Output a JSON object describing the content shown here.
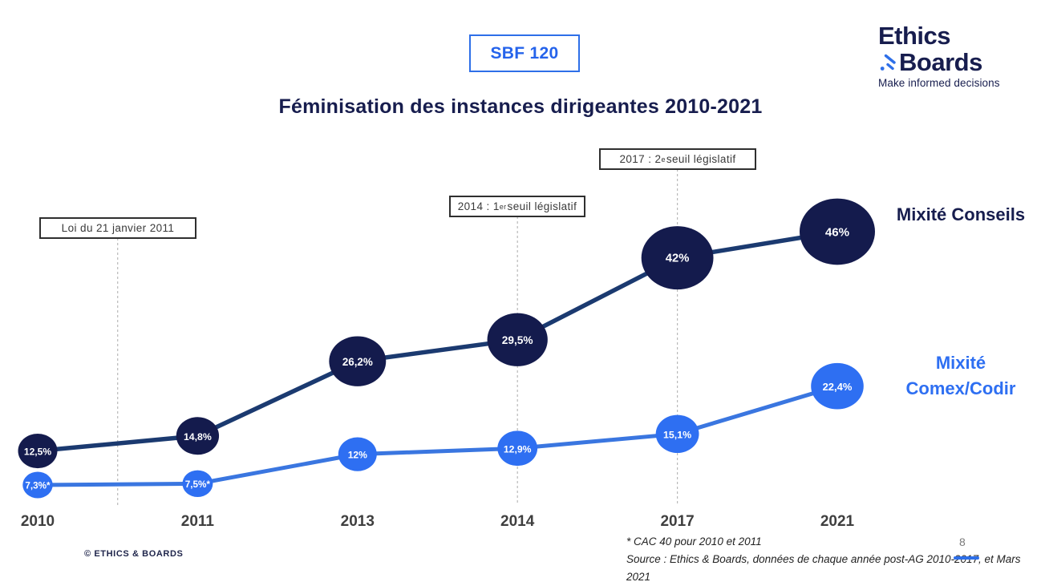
{
  "colors": {
    "navy": "#171d4e",
    "dark_bubble": "#141b4d",
    "dark_line": "#1b3a70",
    "blue_bubble": "#2e6ff2",
    "blue_line": "#3a76e0",
    "accent_blue": "#2e6fe8",
    "axis_label_grey": "#3f3f3f",
    "page_number_grey": "#7a7a7a"
  },
  "header": {
    "index_badge": "SBF 120",
    "title": "Féminisation des instances dirigeantes 2010-2021",
    "logo": {
      "word1": "Ethics",
      "word2": "Boards",
      "ampersand": "&",
      "tagline": "Make informed decisions"
    }
  },
  "annotation_boxes": {
    "loi": {
      "pre": "Loi du 21 janvier 2011",
      "sup": "",
      "post": ""
    },
    "seuil_2014": {
      "pre": "2014 : 1",
      "sup": "er",
      "post": " seuil législatif"
    },
    "seuil_2017": {
      "pre": "2017 : 2",
      "sup": "e",
      "post": " seuil législatif"
    }
  },
  "chart_data": {
    "type": "line",
    "title": "Féminisation des instances dirigeantes 2010-2021",
    "subtitle": "SBF 120",
    "categories": [
      "2010",
      "2011",
      "2013",
      "2014",
      "2017",
      "2021"
    ],
    "series": [
      {
        "name": "Mixité Conseils",
        "color": "#141b4d",
        "line_color": "#1b3a70",
        "values": [
          12.5,
          14.8,
          26.2,
          29.5,
          42,
          46
        ],
        "point_labels": [
          "12,5%",
          "14,8%",
          "26,2%",
          "29,5%",
          "42%",
          "46%"
        ]
      },
      {
        "name": "Mixité Comex/Codir",
        "color": "#2e6ff2",
        "line_color": "#3a76e0",
        "values": [
          7.3,
          7.5,
          12,
          12.9,
          15.1,
          22.4
        ],
        "point_labels": [
          "7,3%*",
          "7,5%*",
          "12%",
          "12,9%",
          "15,1%",
          "22,4%"
        ]
      }
    ],
    "annotations": [
      "Loi du 21 janvier 2011",
      "2014 : 1er seuil législatif",
      "2017 : 2e seuil législatif"
    ],
    "ylim": [
      0,
      50
    ],
    "grid": false,
    "legend_position": "right",
    "value_suffix": "%",
    "point_style": "bubble-sized-by-value"
  },
  "footer": {
    "copyright": "© ETHICS & BOARDS",
    "note": "* CAC 40 pour 2010 et 2011",
    "source": "Source : Ethics & Boards, données de chaque année post-AG 2010-2017, et Mars 2021",
    "page_number": "8"
  }
}
